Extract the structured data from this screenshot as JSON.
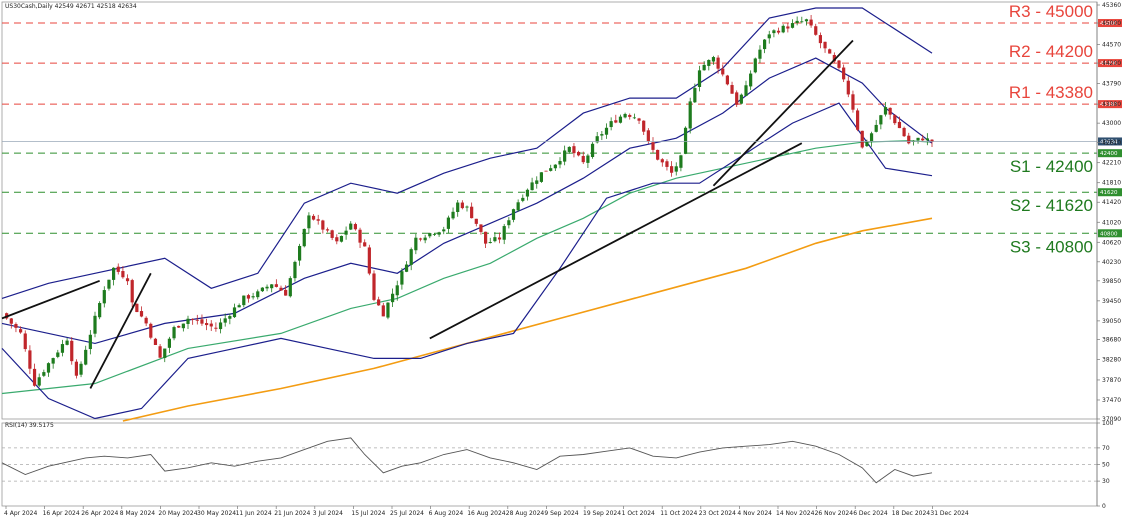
{
  "header": {
    "symbol_info": "US30Cash,Daily  42549 42671 42518 42634",
    "rsi_info": "RSI(14) 39.5175"
  },
  "colors": {
    "bull": "#1e7b1e",
    "bear": "#c0262b",
    "bollinger": "#1c1f8c",
    "ma_fast": "#3aaa6e",
    "ma_slow": "#f39c12",
    "resistance": "#e8453c",
    "support": "#2f8f2f",
    "trendline": "#111111",
    "rsi": "#555555",
    "price_tag": "#2f4f6f"
  },
  "chart_data": [
    {
      "type": "candlestick",
      "ylim": [
        37090,
        45380
      ],
      "y_ticks": [
        37090,
        37470,
        37870,
        38280,
        38680,
        39050,
        39450,
        39850,
        40230,
        40620,
        41020,
        41420,
        41810,
        42210,
        42610,
        43000,
        43380,
        43790,
        44200,
        44570,
        45000,
        45360
      ],
      "x_labels": [
        "4 Apr 2024",
        "16 Apr 2024",
        "26 Apr 2024",
        "8 May 2024",
        "20 May 2024",
        "30 May 2024",
        "11 Jun 2024",
        "21 Jun 2024",
        "3 Jul 2024",
        "15 Jul 2024",
        "25 Jul 2024",
        "6 Aug 2024",
        "16 Aug 2024",
        "28 Aug 2024",
        "9 Sep 2024",
        "19 Sep 2024",
        "1 Oct 2024",
        "11 Oct 2024",
        "23 Oct 2024",
        "4 Nov 2024",
        "14 Nov 2024",
        "26 Nov 2024",
        "6 Dec 2024",
        "18 Dec 2024",
        "31 Dec 2024"
      ],
      "last_price": 42634,
      "last_price_label": "42634",
      "levels": [
        {
          "name": "R3",
          "value": 45000,
          "label": "R3 - 45000",
          "tag": "45000",
          "kind": "resistance"
        },
        {
          "name": "R2",
          "value": 44200,
          "label": "R2 - 44200",
          "tag": "44200",
          "kind": "resistance"
        },
        {
          "name": "R1",
          "value": 43380,
          "label": "R1 - 43380",
          "tag": "43380",
          "kind": "resistance"
        },
        {
          "name": "S1",
          "value": 42400,
          "label": "S1 - 42400",
          "tag": "42400",
          "kind": "support"
        },
        {
          "name": "S2",
          "value": 41620,
          "label": "S2 - 41620",
          "tag": "41620",
          "kind": "support"
        },
        {
          "name": "S3",
          "value": 40800,
          "label": "S3 - 40800",
          "tag": "40800",
          "kind": "support"
        }
      ],
      "close_path": [
        [
          0,
          39200
        ],
        [
          4,
          38800
        ],
        [
          7,
          37800
        ],
        [
          10,
          38200
        ],
        [
          14,
          38700
        ],
        [
          16,
          37900
        ],
        [
          19,
          38800
        ],
        [
          22,
          39700
        ],
        [
          24,
          40100
        ],
        [
          27,
          39900
        ],
        [
          28,
          39400
        ],
        [
          31,
          39000
        ],
        [
          34,
          38300
        ],
        [
          37,
          38900
        ],
        [
          40,
          39100
        ],
        [
          43,
          39000
        ],
        [
          46,
          38900
        ],
        [
          49,
          39200
        ],
        [
          52,
          39500
        ],
        [
          55,
          39600
        ],
        [
          58,
          39800
        ],
        [
          61,
          39600
        ],
        [
          64,
          40500
        ],
        [
          66,
          41200
        ],
        [
          69,
          40900
        ],
        [
          72,
          40600
        ],
        [
          75,
          41000
        ],
        [
          78,
          40500
        ],
        [
          80,
          39500
        ],
        [
          82,
          39200
        ],
        [
          84,
          39600
        ],
        [
          86,
          40000
        ],
        [
          89,
          40700
        ],
        [
          92,
          40800
        ],
        [
          95,
          40900
        ],
        [
          98,
          41400
        ],
        [
          100,
          41300
        ],
        [
          102,
          41000
        ],
        [
          104,
          40600
        ],
        [
          107,
          40700
        ],
        [
          110,
          41300
        ],
        [
          113,
          41700
        ],
        [
          116,
          42000
        ],
        [
          119,
          42200
        ],
        [
          122,
          42500
        ],
        [
          125,
          42200
        ],
        [
          128,
          42700
        ],
        [
          131,
          43000
        ],
        [
          134,
          43200
        ],
        [
          137,
          43100
        ],
        [
          139,
          42600
        ],
        [
          141,
          42300
        ],
        [
          144,
          42000
        ],
        [
          146,
          42300
        ],
        [
          148,
          43400
        ],
        [
          150,
          44100
        ],
        [
          153,
          44300
        ],
        [
          156,
          43800
        ],
        [
          158,
          43400
        ],
        [
          160,
          43700
        ],
        [
          162,
          44300
        ],
        [
          165,
          44800
        ],
        [
          168,
          44900
        ],
        [
          171,
          45000
        ],
        [
          173,
          45050
        ],
        [
          176,
          44600
        ],
        [
          179,
          44200
        ],
        [
          181,
          43900
        ],
        [
          183,
          43300
        ],
        [
          185,
          42500
        ],
        [
          187,
          42800
        ],
        [
          190,
          43300
        ],
        [
          193,
          42900
        ],
        [
          195,
          42600
        ],
        [
          198,
          42700
        ],
        [
          200,
          42634
        ]
      ],
      "bollinger_upper": [
        [
          0,
          39500
        ],
        [
          10,
          39800
        ],
        [
          20,
          40000
        ],
        [
          35,
          40300
        ],
        [
          45,
          39700
        ],
        [
          55,
          40000
        ],
        [
          65,
          41400
        ],
        [
          75,
          41800
        ],
        [
          85,
          41600
        ],
        [
          95,
          42000
        ],
        [
          105,
          42300
        ],
        [
          115,
          42500
        ],
        [
          125,
          43200
        ],
        [
          135,
          43500
        ],
        [
          145,
          43500
        ],
        [
          155,
          44100
        ],
        [
          165,
          45100
        ],
        [
          175,
          45300
        ],
        [
          185,
          45300
        ],
        [
          200,
          44400
        ]
      ],
      "bollinger_middle": [
        [
          0,
          39000
        ],
        [
          20,
          38600
        ],
        [
          35,
          39000
        ],
        [
          50,
          39200
        ],
        [
          65,
          39900
        ],
        [
          75,
          40200
        ],
        [
          85,
          40000
        ],
        [
          95,
          40600
        ],
        [
          105,
          41000
        ],
        [
          115,
          41400
        ],
        [
          125,
          41900
        ],
        [
          135,
          42500
        ],
        [
          145,
          42700
        ],
        [
          155,
          43200
        ],
        [
          165,
          43900
        ],
        [
          175,
          44300
        ],
        [
          185,
          43800
        ],
        [
          190,
          43300
        ],
        [
          200,
          42600
        ]
      ],
      "bollinger_lower": [
        [
          0,
          38500
        ],
        [
          10,
          37500
        ],
        [
          20,
          37100
        ],
        [
          30,
          37300
        ],
        [
          40,
          38300
        ],
        [
          50,
          38500
        ],
        [
          60,
          38700
        ],
        [
          70,
          38500
        ],
        [
          80,
          38300
        ],
        [
          90,
          38300
        ],
        [
          100,
          38600
        ],
        [
          110,
          38800
        ],
        [
          120,
          40100
        ],
        [
          130,
          41500
        ],
        [
          140,
          41800
        ],
        [
          150,
          41800
        ],
        [
          160,
          42400
        ],
        [
          170,
          43000
        ],
        [
          180,
          43400
        ],
        [
          190,
          42100
        ],
        [
          200,
          41950
        ]
      ],
      "ma_fast": [
        [
          0,
          37600
        ],
        [
          20,
          37800
        ],
        [
          40,
          38500
        ],
        [
          60,
          38800
        ],
        [
          75,
          39300
        ],
        [
          85,
          39500
        ],
        [
          95,
          39900
        ],
        [
          105,
          40200
        ],
        [
          115,
          40700
        ],
        [
          125,
          41100
        ],
        [
          135,
          41600
        ],
        [
          145,
          41900
        ],
        [
          155,
          42100
        ],
        [
          165,
          42300
        ],
        [
          175,
          42500
        ],
        [
          185,
          42620
        ],
        [
          195,
          42650
        ],
        [
          200,
          42620
        ]
      ],
      "ma_slow": [
        [
          26,
          37050
        ],
        [
          40,
          37350
        ],
        [
          60,
          37700
        ],
        [
          80,
          38100
        ],
        [
          100,
          38600
        ],
        [
          120,
          39100
        ],
        [
          140,
          39600
        ],
        [
          160,
          40100
        ],
        [
          175,
          40600
        ],
        [
          185,
          40850
        ],
        [
          200,
          41100
        ]
      ],
      "trendlines": [
        [
          [
            0,
            39100
          ],
          [
            21,
            39850
          ]
        ],
        [
          [
            19,
            37700
          ],
          [
            32,
            40000
          ]
        ],
        [
          [
            92,
            38700
          ],
          [
            172,
            42600
          ]
        ],
        [
          [
            153,
            41750
          ],
          [
            183,
            44650
          ]
        ]
      ],
      "x_span": [
        0,
        200
      ]
    },
    {
      "type": "line",
      "name": "RSI(14)",
      "ylim": [
        0,
        100
      ],
      "y_ticks": [
        0,
        30,
        50,
        70,
        100
      ],
      "levels": [
        30,
        50,
        70
      ],
      "values": [
        [
          0,
          52
        ],
        [
          5,
          38
        ],
        [
          10,
          48
        ],
        [
          18,
          58
        ],
        [
          22,
          60
        ],
        [
          27,
          58
        ],
        [
          32,
          62
        ],
        [
          35,
          42
        ],
        [
          40,
          46
        ],
        [
          45,
          52
        ],
        [
          50,
          48
        ],
        [
          55,
          54
        ],
        [
          60,
          58
        ],
        [
          65,
          68
        ],
        [
          70,
          78
        ],
        [
          75,
          82
        ],
        [
          78,
          62
        ],
        [
          82,
          40
        ],
        [
          86,
          48
        ],
        [
          90,
          52
        ],
        [
          95,
          62
        ],
        [
          100,
          68
        ],
        [
          105,
          58
        ],
        [
          110,
          52
        ],
        [
          115,
          44
        ],
        [
          120,
          60
        ],
        [
          125,
          62
        ],
        [
          130,
          66
        ],
        [
          135,
          70
        ],
        [
          140,
          60
        ],
        [
          145,
          58
        ],
        [
          150,
          65
        ],
        [
          155,
          70
        ],
        [
          160,
          72
        ],
        [
          165,
          74
        ],
        [
          170,
          78
        ],
        [
          175,
          72
        ],
        [
          180,
          62
        ],
        [
          185,
          46
        ],
        [
          188,
          28
        ],
        [
          192,
          44
        ],
        [
          196,
          36
        ],
        [
          200,
          40
        ]
      ]
    }
  ]
}
